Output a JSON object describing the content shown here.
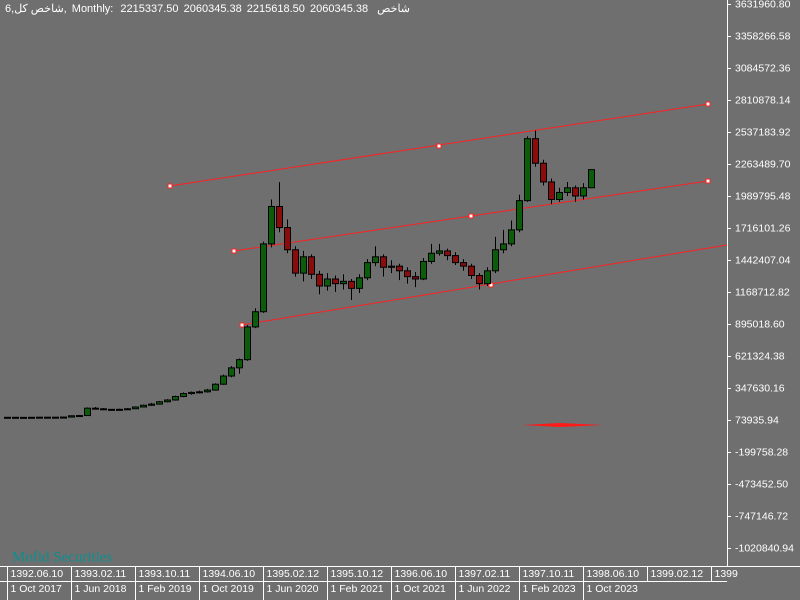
{
  "header": {
    "symbol": "6,شاخص کل,",
    "period": "Monthly:",
    "ohlc": [
      "2215337.50",
      "2060345.38",
      "2215618.50",
      "2060345.38"
    ],
    "name": "شاخص"
  },
  "watermark": "Mofid Securities",
  "chart_data": {
    "type": "candlestick",
    "x": [
      "2017-10-01",
      "2017-11-01",
      "2017-12-01",
      "2018-01-01",
      "2018-02-01",
      "2018-03-01",
      "2018-04-01",
      "2018-05-01",
      "2018-06-01",
      "2018-07-01",
      "2018-08-01",
      "2018-09-01",
      "2018-10-01",
      "2018-11-01",
      "2018-12-01",
      "2019-01-01",
      "2019-02-01",
      "2019-03-01",
      "2019-04-01",
      "2019-05-01",
      "2019-06-01",
      "2019-07-01",
      "2019-08-01",
      "2019-09-01",
      "2019-10-01",
      "2019-11-01",
      "2019-12-01",
      "2020-01-01",
      "2020-02-01",
      "2020-03-01",
      "2020-04-01",
      "2020-05-01",
      "2020-06-01",
      "2020-07-01",
      "2020-08-01",
      "2020-09-01",
      "2020-10-01",
      "2020-11-01",
      "2020-12-01",
      "2021-01-01",
      "2021-02-01",
      "2021-03-01",
      "2021-04-01",
      "2021-05-01",
      "2021-06-01",
      "2021-07-01",
      "2021-08-01",
      "2021-09-01",
      "2021-10-01",
      "2021-11-01",
      "2021-12-01",
      "2022-01-01",
      "2022-02-01",
      "2022-03-01",
      "2022-04-01",
      "2022-05-01",
      "2022-06-01",
      "2022-07-01",
      "2022-08-01",
      "2022-09-01",
      "2022-10-01",
      "2022-11-01",
      "2022-12-01",
      "2023-01-01",
      "2023-02-01",
      "2023-03-01",
      "2023-04-01",
      "2023-05-01",
      "2023-06-01",
      "2023-07-01",
      "2023-08-01",
      "2023-09-01",
      "2023-10-01",
      "2023-11-01"
    ],
    "open": [
      96000,
      97000,
      96500,
      96000,
      97000,
      98000,
      97500,
      98000,
      99000,
      110000,
      112000,
      175000,
      170000,
      165000,
      160000,
      165000,
      170000,
      185000,
      200000,
      210000,
      230000,
      245000,
      275000,
      300000,
      310000,
      315000,
      330000,
      380000,
      450000,
      520000,
      590000,
      870000,
      1000000,
      1580000,
      1900000,
      1720000,
      1530000,
      1330000,
      1470000,
      1320000,
      1220000,
      1280000,
      1240000,
      1260000,
      1200000,
      1290000,
      1420000,
      1470000,
      1380000,
      1390000,
      1350000,
      1300000,
      1280000,
      1430000,
      1500000,
      1520000,
      1480000,
      1420000,
      1390000,
      1310000,
      1240000,
      1350000,
      1530000,
      1580000,
      1700000,
      1950000,
      2480000,
      2270000,
      2110000,
      1960000,
      2020000,
      2060000,
      1990000,
      2060345.38
    ],
    "high": [
      98000,
      98000,
      97500,
      98500,
      99500,
      99000,
      99500,
      101000,
      113000,
      118000,
      182000,
      185000,
      175000,
      168000,
      170000,
      176000,
      190000,
      207000,
      220000,
      236000,
      252000,
      282000,
      310000,
      318000,
      325000,
      340000,
      388000,
      462000,
      535000,
      600000,
      885000,
      1030000,
      1600000,
      1960000,
      2109000,
      1790000,
      1560000,
      1520000,
      1490000,
      1350000,
      1330000,
      1310000,
      1320000,
      1280000,
      1320000,
      1450000,
      1560000,
      1490000,
      1440000,
      1410000,
      1380000,
      1340000,
      1460000,
      1580000,
      1580000,
      1540000,
      1510000,
      1450000,
      1410000,
      1330000,
      1380000,
      1640000,
      1700000,
      1780000,
      2000000,
      2500000,
      2550000,
      2300000,
      2140000,
      2060000,
      2110000,
      2080000,
      2100000,
      2215618.5
    ],
    "low": [
      95000,
      95500,
      95000,
      95500,
      96500,
      96500,
      96500,
      97000,
      98000,
      108000,
      111000,
      165000,
      160000,
      155000,
      156000,
      162000,
      168000,
      182000,
      195000,
      205000,
      225000,
      240000,
      268000,
      290000,
      302000,
      308000,
      325000,
      375000,
      440000,
      470000,
      580000,
      860000,
      990000,
      1550000,
      1680000,
      1500000,
      1300000,
      1260000,
      1280000,
      1150000,
      1180000,
      1170000,
      1190000,
      1100000,
      1160000,
      1270000,
      1390000,
      1300000,
      1330000,
      1270000,
      1240000,
      1210000,
      1270000,
      1410000,
      1480000,
      1440000,
      1400000,
      1350000,
      1280000,
      1190000,
      1220000,
      1330000,
      1500000,
      1560000,
      1680000,
      1940000,
      2240000,
      2080000,
      1920000,
      1940000,
      1990000,
      1940000,
      1960000,
      2060345.38
    ],
    "close": [
      97000,
      96500,
      96000,
      97000,
      98000,
      97500,
      98000,
      99000,
      110000,
      112000,
      175000,
      170000,
      165000,
      160000,
      165000,
      170000,
      185000,
      200000,
      210000,
      230000,
      245000,
      275000,
      300000,
      310000,
      315000,
      330000,
      380000,
      450000,
      520000,
      590000,
      870000,
      1000000,
      1580000,
      1900000,
      1720000,
      1530000,
      1330000,
      1470000,
      1320000,
      1220000,
      1280000,
      1240000,
      1260000,
      1200000,
      1290000,
      1420000,
      1470000,
      1380000,
      1390000,
      1350000,
      1300000,
      1280000,
      1430000,
      1500000,
      1520000,
      1480000,
      1420000,
      1390000,
      1310000,
      1240000,
      1350000,
      1530000,
      1580000,
      1700000,
      1950000,
      2480000,
      2270000,
      2110000,
      1960000,
      2020000,
      2060000,
      1990000,
      2060345.38,
      2215337.5
    ],
    "up_color": "#0b5d0b",
    "down_color": "#8a0c0c",
    "xlim": [
      "2017-09-04",
      "2025-04-01"
    ],
    "xticks": [
      {
        "value": "2017-10-01",
        "label": "1 Oct 2017"
      },
      {
        "value": "2018-06-01",
        "label": "1 Jun 2018"
      },
      {
        "value": "2019-02-01",
        "label": "1 Feb 2019"
      },
      {
        "value": "2019-10-01",
        "label": "1 Oct 2019"
      },
      {
        "value": "2020-06-01",
        "label": "1 Jun 2020"
      },
      {
        "value": "2021-02-01",
        "label": "1 Feb 2021"
      },
      {
        "value": "2021-10-01",
        "label": "1 Oct 2021"
      },
      {
        "value": "2022-06-01",
        "label": "1 Jun 2022"
      },
      {
        "value": "2023-02-01",
        "label": "1 Feb 2023"
      },
      {
        "value": "2023-10-01",
        "label": "1 Oct 2023"
      }
    ],
    "xticks2": [
      {
        "value": "2017-10-01",
        "label": "1392.06.10"
      },
      {
        "value": "2018-06-01",
        "label": "1393.02.11"
      },
      {
        "value": "2019-02-01",
        "label": "1393.10.11"
      },
      {
        "value": "2019-10-01",
        "label": "1394.06.10"
      },
      {
        "value": "2020-06-01",
        "label": "1395.02.12"
      },
      {
        "value": "2021-02-01",
        "label": "1395.10.12"
      },
      {
        "value": "2021-10-01",
        "label": "1396.06.10"
      },
      {
        "value": "2022-06-01",
        "label": "1397.02.11"
      },
      {
        "value": "2023-02-01",
        "label": "1397.10.11"
      },
      {
        "value": "2023-10-01",
        "label": "1398.06.10"
      },
      {
        "value": "2024-06-01",
        "label": "1399.02.12"
      },
      {
        "value": "2025-02-01",
        "label": "1399"
      }
    ],
    "ylim": [
      -1174794,
      3666173
    ],
    "yticks": [
      {
        "value": 3631960.8,
        "label": "3631960.80"
      },
      3358266.58,
      3084572.36,
      2810878.14,
      2537183.92,
      {
        "value": 2263489.7,
        "label": "2263489.70"
      },
      1989795.48,
      1716101.26,
      1442407.04,
      1168712.82,
      {
        "value": 895018.6,
        "label": "895018.60"
      },
      621324.38,
      347630.16,
      73935.94,
      -199758.28,
      {
        "value": -473452.5,
        "label": "-473452.50"
      },
      -747146.72,
      -1020840.94
    ]
  }
}
